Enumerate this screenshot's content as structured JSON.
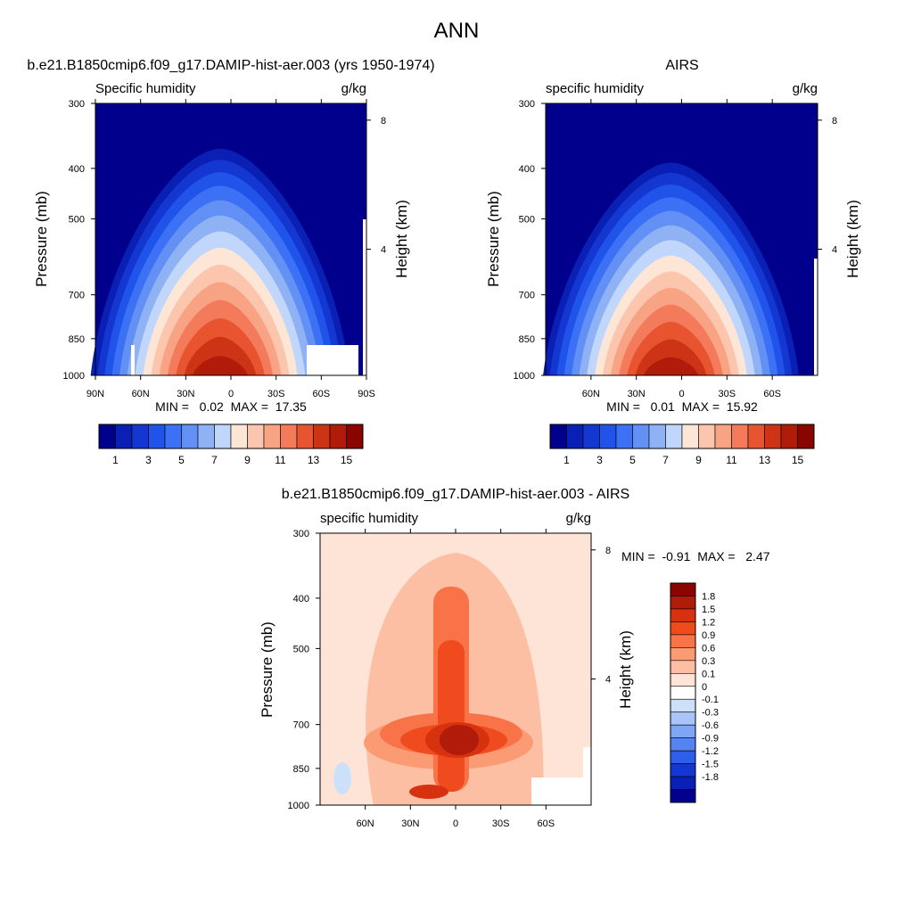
{
  "chart_data": {
    "title": "ANN",
    "panels": [
      {
        "type": "contour",
        "title": "b.e21.B1850cmip6.f09_g17.DAMIP-hist-aer.003 (yrs 1950-1974)",
        "left_label": "Specific humidity",
        "units": "g/kg",
        "ylabel": "Pressure (mb)",
        "ylabel_right": "Height (km)",
        "y_ticks": [
          "300",
          "400",
          "500",
          "700",
          "850",
          "1000"
        ],
        "y_ticks_right": [
          "8",
          "4"
        ],
        "x_ticks": [
          "90N",
          "60N",
          "30N",
          "0",
          "30S",
          "60S",
          "90S"
        ],
        "min_max_label": "MIN =   0.02  MAX =  17.35",
        "colorbar_ticks": [
          "1",
          "3",
          "5",
          "7",
          "9",
          "11",
          "13",
          "15"
        ],
        "levels": [
          1,
          2,
          3,
          4,
          5,
          6,
          7,
          8,
          9,
          10,
          11,
          12,
          13,
          14,
          15
        ]
      },
      {
        "type": "contour",
        "title": "AIRS",
        "left_label": "specific humidity",
        "units": "g/kg",
        "ylabel": "Pressure (mb)",
        "ylabel_right": "Height (km)",
        "y_ticks": [
          "300",
          "400",
          "500",
          "700",
          "850",
          "1000"
        ],
        "y_ticks_right": [
          "8",
          "4"
        ],
        "x_ticks": [
          "60N",
          "30N",
          "0",
          "30S",
          "60S"
        ],
        "min_max_label": "MIN =   0.01  MAX =  15.92",
        "colorbar_ticks": [
          "1",
          "3",
          "5",
          "7",
          "9",
          "11",
          "13",
          "15"
        ],
        "levels": [
          1,
          2,
          3,
          4,
          5,
          6,
          7,
          8,
          9,
          10,
          11,
          12,
          13,
          14,
          15
        ]
      },
      {
        "type": "contour",
        "title": "b.e21.B1850cmip6.f09_g17.DAMIP-hist-aer.003 - AIRS",
        "left_label": "specific humidity",
        "units": "g/kg",
        "ylabel": "Pressure (mb)",
        "ylabel_right": "Height (km)",
        "y_ticks": [
          "300",
          "400",
          "500",
          "700",
          "850",
          "1000"
        ],
        "y_ticks_right": [
          "8",
          "4"
        ],
        "x_ticks": [
          "60N",
          "30N",
          "0",
          "30S",
          "60S"
        ],
        "min_max_label": "MIN =  -0.91  MAX =   2.47",
        "colorbar_labels": [
          "1.8",
          "1.5",
          "1.2",
          "0.9",
          "0.6",
          "0.3",
          "0.1",
          "0",
          "-0.1",
          "-0.3",
          "-0.6",
          "-0.9",
          "-1.2",
          "-1.5",
          "-1.8"
        ]
      }
    ],
    "colors": {
      "sequential": [
        "#00008c",
        "#0a1fb4",
        "#1437d2",
        "#1f53ea",
        "#3c71f5",
        "#6290f5",
        "#8fb2f5",
        "#c0d6fa",
        "#fde6d6",
        "#fcc5ad",
        "#f8a383",
        "#f37b5b",
        "#e8542f",
        "#cc3415",
        "#b01b0a",
        "#8a0500"
      ],
      "diverging": [
        "#8a0500",
        "#b01b0a",
        "#d6320f",
        "#f04a1f",
        "#f87448",
        "#fb9b73",
        "#fcbfa3",
        "#fde4d6",
        "#ffffff",
        "#cde0fa",
        "#a8c4f8",
        "#7ea6f5",
        "#5583f2",
        "#2e5fe8",
        "#1437d2",
        "#0a1fb4",
        "#00008c"
      ]
    }
  }
}
